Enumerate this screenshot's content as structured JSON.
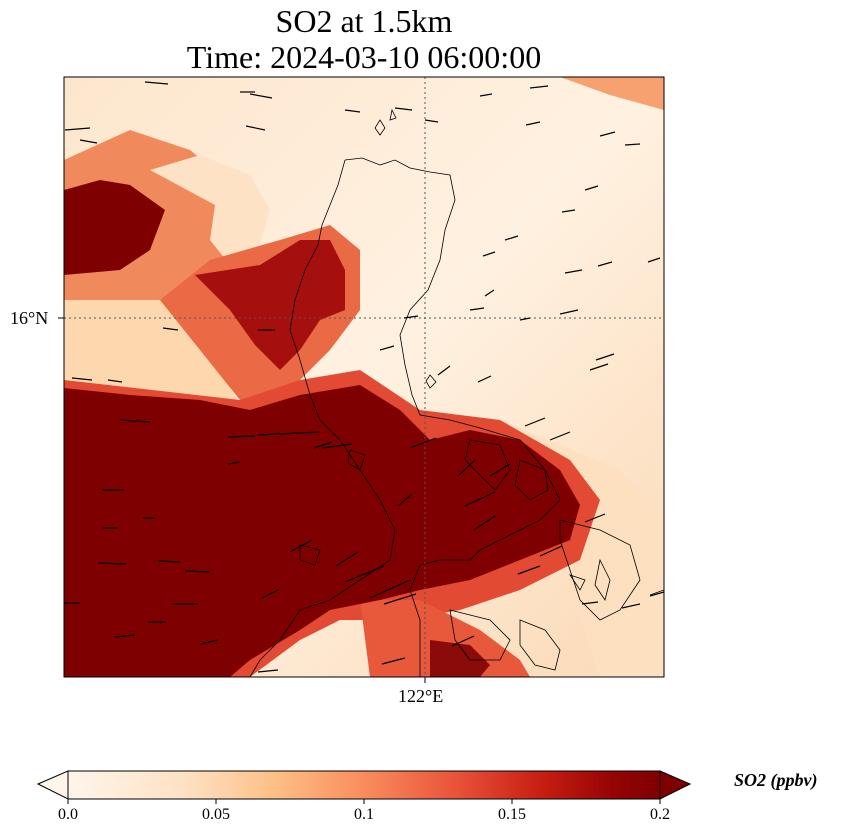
{
  "title": {
    "line1": "SO2 at 1.5km",
    "line2": "Time: 2024-03-10 06:00:00"
  },
  "map": {
    "latitude_label": "16°N",
    "longitude_label": "122°E",
    "gridlines": "dotted"
  },
  "colorbar": {
    "label": "SO2 (ppbv)",
    "ticks": [
      "0.0",
      "0.05",
      "0.1",
      "0.15",
      "0.2"
    ],
    "min": 0.0,
    "max": 0.2,
    "colormap": [
      "#fff5eb",
      "#fdd9b4",
      "#fdae6b",
      "#f16913",
      "#d94801",
      "#a50f15",
      "#7f0000"
    ],
    "extend": "both"
  },
  "colors": {
    "max_concentration": "#7f0000",
    "background_low": "#fff5eb",
    "vectors": "#000000",
    "coastline": "#000000"
  }
}
